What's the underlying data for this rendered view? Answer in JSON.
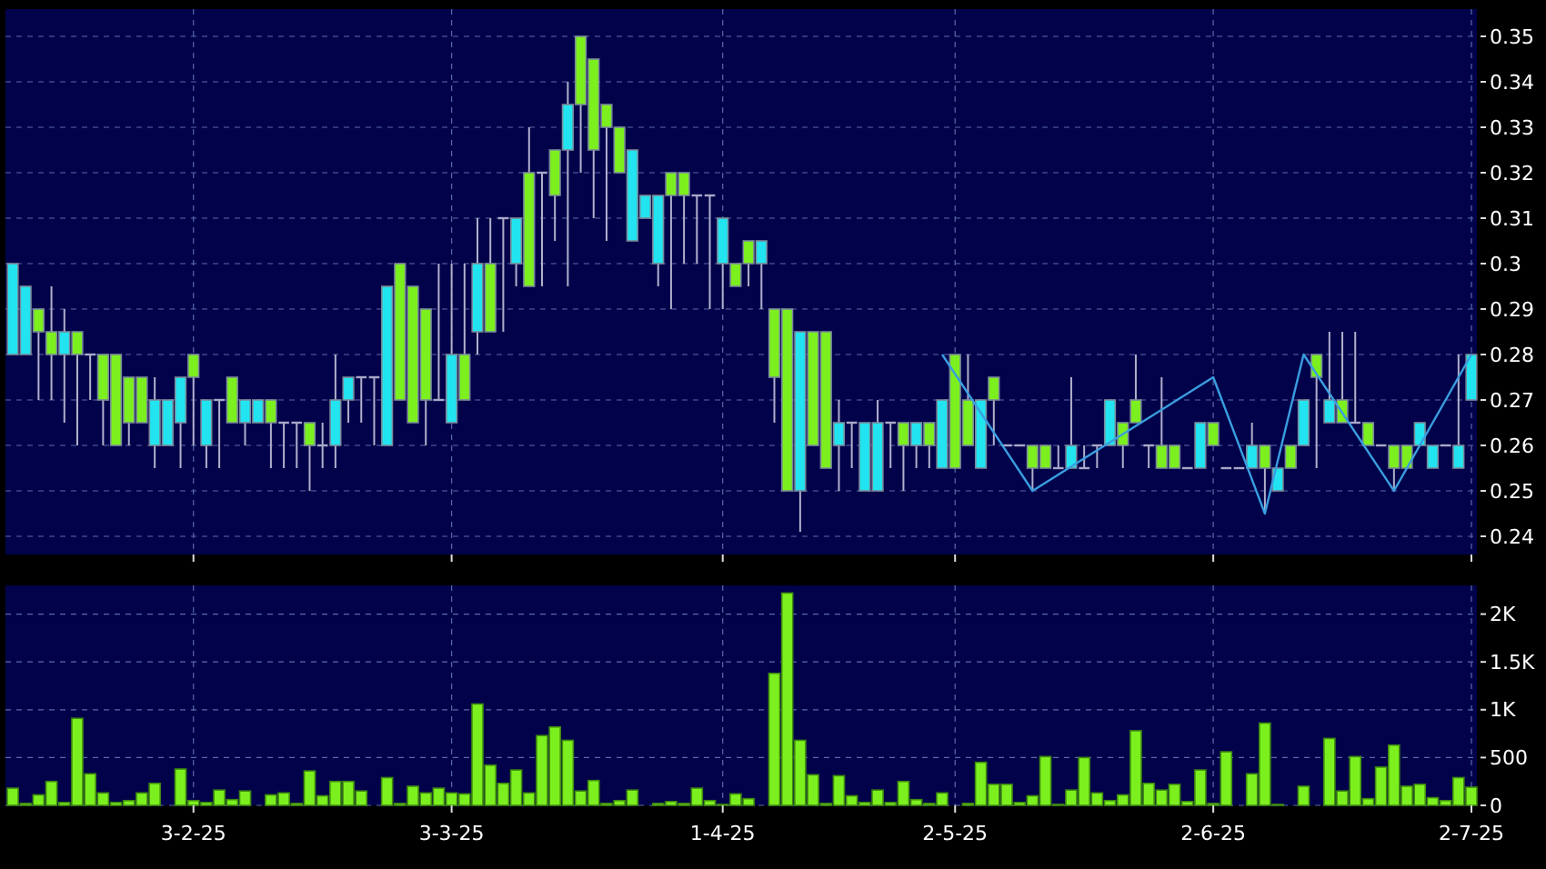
{
  "chart_data": [
    {
      "type": "candlestick",
      "categories": [
        null,
        null,
        null,
        null,
        null,
        null,
        null,
        null,
        null,
        null,
        null,
        null,
        null,
        null,
        null,
        null,
        null,
        null,
        null,
        null,
        null,
        null,
        null,
        null,
        null,
        null,
        null,
        null,
        null,
        null,
        null,
        null,
        null,
        null,
        null,
        null,
        null,
        null,
        null,
        null,
        null,
        null,
        null,
        null,
        null,
        null,
        null,
        null,
        null,
        null,
        null,
        null,
        null,
        null,
        null,
        null,
        null,
        null,
        null,
        null,
        null,
        null,
        null,
        null,
        null,
        null,
        null,
        null,
        null,
        null,
        null,
        null,
        null,
        null,
        null,
        null,
        null,
        null,
        null,
        null,
        null,
        null,
        null,
        null,
        null,
        null,
        null,
        null,
        null,
        null,
        null,
        null,
        null,
        null,
        null,
        null,
        null,
        null,
        null,
        null,
        null,
        null,
        null,
        null,
        null,
        null,
        null,
        null,
        null,
        null,
        null,
        null,
        null,
        null
      ],
      "ylim": [
        0.236,
        0.356
      ],
      "yticks": [
        0.24,
        0.25,
        0.26,
        0.27,
        0.28,
        0.29,
        0.3,
        0.31,
        0.32,
        0.33,
        0.34,
        0.35
      ],
      "grid": true,
      "tick_labels": "y",
      "series": [
        {
          "type": "candlestick",
          "colors": [
            "#22e4f0",
            "#22e4f0",
            "#7cf01e",
            "#7cf01e",
            "#22e4f0",
            "#7cf01e",
            "#a8a8c8",
            "#7cf01e",
            "#7cf01e",
            "#7cf01e",
            "#7cf01e",
            "#22e4f0",
            "#22e4f0",
            "#22e4f0",
            "#7cf01e",
            "#22e4f0",
            "#a8a8c8",
            "#7cf01e",
            "#22e4f0",
            "#22e4f0",
            "#7cf01e",
            "#a8a8c8",
            "#a8a8c8",
            "#7cf01e",
            "#a8a8c8",
            "#22e4f0",
            "#22e4f0",
            "#a8a8c8",
            "#a8a8c8",
            "#22e4f0",
            "#7cf01e",
            "#7cf01e",
            "#7cf01e",
            "#a8a8c8",
            "#22e4f0",
            "#7cf01e",
            "#22e4f0",
            "#7cf01e",
            "#a8a8c8",
            "#22e4f0",
            "#7cf01e",
            "#a8a8c8",
            "#7cf01e",
            "#22e4f0",
            "#7cf01e",
            "#7cf01e",
            "#7cf01e",
            "#7cf01e",
            "#22e4f0",
            "#22e4f0",
            "#22e4f0",
            "#7cf01e",
            "#7cf01e",
            "#a8a8c8",
            "#a8a8c8",
            "#22e4f0",
            "#7cf01e",
            "#7cf01e",
            "#22e4f0",
            "#7cf01e",
            "#7cf01e",
            "#22e4f0",
            "#7cf01e",
            "#7cf01e",
            "#22e4f0",
            "#a8a8c8",
            "#22e4f0",
            "#22e4f0",
            "#a8a8c8",
            "#7cf01e",
            "#22e4f0",
            "#7cf01e",
            "#22e4f0",
            "#7cf01e",
            "#7cf01e",
            "#22e4f0",
            "#7cf01e",
            "#a8a8c8",
            "#a8a8c8",
            "#7cf01e",
            "#7cf01e",
            "#a8a8c8",
            "#22e4f0",
            "#a8a8c8",
            "#a8a8c8",
            "#22e4f0",
            "#7cf01e",
            "#7cf01e",
            "#a8a8c8",
            "#7cf01e",
            "#7cf01e",
            "#a8a8c8",
            "#22e4f0",
            "#7cf01e",
            "#a8a8c8",
            "#a8a8c8",
            "#22e4f0",
            "#7cf01e",
            "#22e4f0",
            "#7cf01e",
            "#22e4f0",
            "#7cf01e",
            "#22e4f0",
            "#7cf01e",
            "#a8a8c8",
            "#7cf01e",
            "#a8a8c8",
            "#7cf01e",
            "#7cf01e",
            "#22e4f0",
            "#22e4f0",
            "#a8a8c8",
            "#22e4f0",
            "#22e4f0"
          ],
          "ohlc": [
            [
              0.3,
              0.3,
              0.28,
              0.28
            ],
            [
              0.295,
              0.295,
              0.28,
              0.28
            ],
            [
              0.285,
              0.29,
              0.27,
              0.29
            ],
            [
              0.28,
              0.295,
              0.27,
              0.285
            ],
            [
              0.285,
              0.29,
              0.265,
              0.28
            ],
            [
              0.28,
              0.285,
              0.26,
              0.285
            ],
            [
              0.28,
              0.28,
              0.27,
              0.28
            ],
            [
              0.27,
              0.28,
              0.26,
              0.28
            ],
            [
              0.26,
              0.28,
              0.26,
              0.28
            ],
            [
              0.265,
              0.275,
              0.26,
              0.275
            ],
            [
              0.265,
              0.275,
              0.265,
              0.275
            ],
            [
              0.27,
              0.275,
              0.255,
              0.26
            ],
            [
              0.27,
              0.27,
              0.26,
              0.26
            ],
            [
              0.275,
              0.275,
              0.255,
              0.265
            ],
            [
              0.275,
              0.28,
              0.26,
              0.28
            ],
            [
              0.27,
              0.27,
              0.255,
              0.26
            ],
            [
              0.27,
              0.27,
              0.255,
              0.27
            ],
            [
              0.265,
              0.275,
              0.265,
              0.275
            ],
            [
              0.27,
              0.27,
              0.26,
              0.265
            ],
            [
              0.27,
              0.27,
              0.265,
              0.265
            ],
            [
              0.265,
              0.27,
              0.255,
              0.27
            ],
            [
              0.265,
              0.265,
              0.255,
              0.265
            ],
            [
              0.265,
              0.265,
              0.255,
              0.265
            ],
            [
              0.26,
              0.265,
              0.25,
              0.265
            ],
            [
              0.26,
              0.265,
              0.255,
              0.26
            ],
            [
              0.27,
              0.28,
              0.255,
              0.26
            ],
            [
              0.275,
              0.275,
              0.265,
              0.27
            ],
            [
              0.275,
              0.275,
              0.265,
              0.275
            ],
            [
              0.275,
              0.275,
              0.26,
              0.275
            ],
            [
              0.295,
              0.295,
              0.26,
              0.26
            ],
            [
              0.27,
              0.3,
              0.27,
              0.3
            ],
            [
              0.265,
              0.295,
              0.265,
              0.295
            ],
            [
              0.27,
              0.29,
              0.26,
              0.29
            ],
            [
              0.27,
              0.3,
              0.27,
              0.27
            ],
            [
              0.28,
              0.3,
              0.265,
              0.265
            ],
            [
              0.27,
              0.3,
              0.27,
              0.28
            ],
            [
              0.3,
              0.31,
              0.28,
              0.285
            ],
            [
              0.285,
              0.31,
              0.285,
              0.3
            ],
            [
              0.31,
              0.31,
              0.285,
              0.31
            ],
            [
              0.31,
              0.31,
              0.295,
              0.3
            ],
            [
              0.295,
              0.33,
              0.295,
              0.32
            ],
            [
              0.32,
              0.32,
              0.295,
              0.32
            ],
            [
              0.315,
              0.325,
              0.305,
              0.325
            ],
            [
              0.335,
              0.34,
              0.295,
              0.325
            ],
            [
              0.335,
              0.35,
              0.32,
              0.35
            ],
            [
              0.325,
              0.345,
              0.31,
              0.345
            ],
            [
              0.33,
              0.335,
              0.305,
              0.335
            ],
            [
              0.32,
              0.33,
              0.32,
              0.33
            ],
            [
              0.325,
              0.325,
              0.305,
              0.305
            ],
            [
              0.315,
              0.315,
              0.31,
              0.31
            ],
            [
              0.315,
              0.315,
              0.295,
              0.3
            ],
            [
              0.315,
              0.32,
              0.29,
              0.32
            ],
            [
              0.315,
              0.32,
              0.3,
              0.32
            ],
            [
              0.315,
              0.315,
              0.3,
              0.315
            ],
            [
              0.315,
              0.315,
              0.29,
              0.315
            ],
            [
              0.31,
              0.31,
              0.29,
              0.3
            ],
            [
              0.295,
              0.3,
              0.295,
              0.3
            ],
            [
              0.3,
              0.305,
              0.295,
              0.305
            ],
            [
              0.305,
              0.305,
              0.29,
              0.3
            ],
            [
              0.275,
              0.29,
              0.265,
              0.29
            ],
            [
              0.25,
              0.29,
              0.25,
              0.29
            ],
            [
              0.285,
              0.285,
              0.241,
              0.25
            ],
            [
              0.26,
              0.285,
              0.26,
              0.285
            ],
            [
              0.255,
              0.285,
              0.255,
              0.285
            ],
            [
              0.265,
              0.27,
              0.25,
              0.26
            ],
            [
              0.265,
              0.265,
              0.255,
              0.265
            ],
            [
              0.265,
              0.265,
              0.25,
              0.25
            ],
            [
              0.265,
              0.27,
              0.25,
              0.25
            ],
            [
              0.265,
              0.265,
              0.255,
              0.265
            ],
            [
              0.26,
              0.265,
              0.25,
              0.265
            ],
            [
              0.265,
              0.265,
              0.255,
              0.26
            ],
            [
              0.26,
              0.265,
              0.255,
              0.265
            ],
            [
              0.27,
              0.27,
              0.255,
              0.255
            ],
            [
              0.255,
              0.28,
              0.255,
              0.28
            ],
            [
              0.26,
              0.28,
              0.26,
              0.27
            ],
            [
              0.27,
              0.27,
              0.255,
              0.255
            ],
            [
              0.27,
              0.275,
              0.26,
              0.275
            ],
            [
              0.26,
              0.26,
              0.26,
              0.26
            ],
            [
              0.26,
              0.26,
              0.26,
              0.26
            ],
            [
              0.255,
              0.26,
              0.25,
              0.26
            ],
            [
              0.255,
              0.26,
              0.255,
              0.26
            ],
            [
              0.255,
              0.26,
              0.255,
              0.255
            ],
            [
              0.26,
              0.275,
              0.255,
              0.255
            ],
            [
              0.255,
              0.26,
              0.255,
              0.255
            ],
            [
              0.26,
              0.26,
              0.255,
              0.26
            ],
            [
              0.27,
              0.27,
              0.26,
              0.26
            ],
            [
              0.26,
              0.265,
              0.255,
              0.265
            ],
            [
              0.265,
              0.28,
              0.265,
              0.27
            ],
            [
              0.26,
              0.26,
              0.255,
              0.26
            ],
            [
              0.255,
              0.275,
              0.255,
              0.26
            ],
            [
              0.255,
              0.26,
              0.255,
              0.26
            ],
            [
              0.255,
              0.255,
              0.255,
              0.255
            ],
            [
              0.265,
              0.265,
              0.255,
              0.255
            ],
            [
              0.26,
              0.265,
              0.26,
              0.265
            ],
            [
              0.255,
              0.255,
              0.255,
              0.255
            ],
            [
              0.255,
              0.255,
              0.255,
              0.255
            ],
            [
              0.26,
              0.265,
              0.255,
              0.255
            ],
            [
              0.255,
              0.26,
              0.245,
              0.26
            ],
            [
              0.255,
              0.255,
              0.25,
              0.25
            ],
            [
              0.255,
              0.26,
              0.255,
              0.26
            ],
            [
              0.27,
              0.27,
              0.26,
              0.26
            ],
            [
              0.275,
              0.28,
              0.255,
              0.28
            ],
            [
              0.27,
              0.285,
              0.265,
              0.265
            ],
            [
              0.265,
              0.285,
              0.265,
              0.27
            ],
            [
              0.265,
              0.285,
              0.265,
              0.265
            ],
            [
              0.26,
              0.265,
              0.26,
              0.265
            ],
            [
              0.26,
              0.26,
              0.26,
              0.26
            ],
            [
              0.255,
              0.26,
              0.25,
              0.26
            ],
            [
              0.255,
              0.26,
              0.255,
              0.26
            ],
            [
              0.265,
              0.265,
              0.26,
              0.26
            ],
            [
              0.26,
              0.26,
              0.255,
              0.255
            ],
            [
              0.26,
              0.26,
              0.26,
              0.26
            ],
            [
              0.26,
              0.28,
              0.255,
              0.255
            ],
            [
              0.28,
              0.28,
              0.27,
              0.27
            ]
          ]
        },
        {
          "type": "line",
          "color": "#3a9ee0",
          "values": [
            null,
            null,
            null,
            null,
            null,
            null,
            null,
            null,
            null,
            null,
            null,
            null,
            null,
            null,
            null,
            null,
            null,
            null,
            null,
            null,
            null,
            null,
            null,
            null,
            null,
            null,
            null,
            null,
            null,
            null,
            null,
            null,
            null,
            null,
            null,
            null,
            null,
            null,
            null,
            null,
            null,
            null,
            null,
            null,
            null,
            null,
            null,
            null,
            null,
            null,
            null,
            null,
            null,
            null,
            null,
            null,
            null,
            null,
            null,
            null,
            null,
            null,
            null,
            null,
            null,
            null,
            null,
            null,
            null,
            null,
            null,
            null,
            0.28,
            null,
            null,
            null,
            null,
            null,
            null,
            0.25,
            null,
            null,
            null,
            null,
            null,
            null,
            null,
            null,
            null,
            null,
            null,
            null,
            null,
            0.275,
            null,
            null,
            null,
            0.245,
            null,
            null,
            0.28,
            null,
            null,
            null,
            null,
            null,
            null,
            0.25,
            null,
            null,
            null,
            null,
            null,
            0.28
          ]
        }
      ]
    },
    {
      "type": "bar",
      "color": "#7cf01e",
      "categories": [
        null,
        null,
        null,
        null,
        null,
        null,
        null,
        null,
        null,
        null,
        null,
        null,
        null,
        null,
        "3-2-25",
        null,
        null,
        null,
        null,
        null,
        null,
        null,
        null,
        null,
        null,
        null,
        null,
        null,
        null,
        null,
        null,
        null,
        null,
        null,
        "3-3-25",
        null,
        null,
        null,
        null,
        null,
        null,
        null,
        null,
        null,
        null,
        null,
        null,
        null,
        null,
        null,
        null,
        null,
        null,
        null,
        null,
        "1-4-25",
        null,
        null,
        null,
        null,
        null,
        null,
        null,
        null,
        null,
        null,
        null,
        null,
        null,
        null,
        null,
        null,
        null,
        "2-5-25",
        null,
        null,
        null,
        null,
        null,
        null,
        null,
        null,
        null,
        null,
        null,
        null,
        null,
        null,
        null,
        null,
        null,
        null,
        null,
        "2-6-25",
        null,
        null,
        null,
        null,
        null,
        null,
        null,
        null,
        null,
        null,
        null,
        null,
        null,
        null,
        null,
        null,
        null,
        null,
        null,
        "2-7-25"
      ],
      "ylim": [
        0,
        2300
      ],
      "yticks": [
        0,
        500,
        {
          "value": 1000,
          "label": "1K"
        },
        {
          "value": 1500,
          "label": "1.5K"
        },
        {
          "value": 2000,
          "label": "2K"
        }
      ],
      "grid": true,
      "values": [
        180,
        20,
        110,
        250,
        30,
        910,
        330,
        130,
        30,
        50,
        130,
        230,
        0,
        380,
        50,
        30,
        160,
        60,
        150,
        0,
        110,
        130,
        20,
        360,
        100,
        250,
        250,
        150,
        0,
        290,
        20,
        200,
        130,
        180,
        130,
        120,
        1060,
        420,
        230,
        370,
        130,
        730,
        820,
        680,
        150,
        260,
        20,
        50,
        160,
        0,
        20,
        40,
        20,
        180,
        50,
        10,
        120,
        70,
        0,
        1380,
        2220,
        680,
        320,
        20,
        310,
        100,
        30,
        160,
        30,
        250,
        60,
        20,
        130,
        0,
        20,
        450,
        220,
        220,
        30,
        100,
        510,
        10,
        160,
        500,
        130,
        50,
        110,
        780,
        230,
        160,
        220,
        40,
        370,
        20,
        560,
        0,
        330,
        860,
        10,
        0,
        200,
        0,
        700,
        150,
        510,
        70,
        400,
        630,
        200,
        220,
        80,
        50,
        290,
        190
      ]
    }
  ]
}
